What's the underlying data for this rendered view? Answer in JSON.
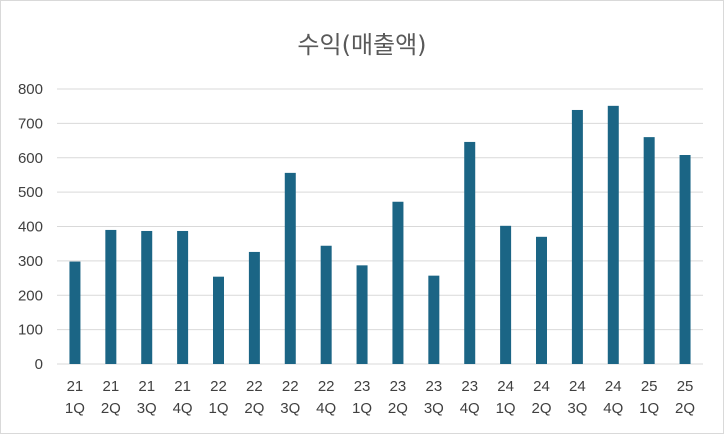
{
  "chart_data": {
    "type": "bar",
    "title": "수익(매출액)",
    "xlabel": "",
    "ylabel": "",
    "ylim": [
      0,
      800
    ],
    "yticks": [
      0,
      100,
      200,
      300,
      400,
      500,
      600,
      700,
      800
    ],
    "grid": true,
    "legend": "none",
    "bar_color": "#1b6585",
    "categories": [
      [
        "21",
        "1Q"
      ],
      [
        "21",
        "2Q"
      ],
      [
        "21",
        "3Q"
      ],
      [
        "21",
        "4Q"
      ],
      [
        "22",
        "1Q"
      ],
      [
        "22",
        "2Q"
      ],
      [
        "22",
        "3Q"
      ],
      [
        "22",
        "4Q"
      ],
      [
        "23",
        "1Q"
      ],
      [
        "23",
        "2Q"
      ],
      [
        "23",
        "3Q"
      ],
      [
        "23",
        "4Q"
      ],
      [
        "24",
        "1Q"
      ],
      [
        "24",
        "2Q"
      ],
      [
        "24",
        "3Q"
      ],
      [
        "24",
        "4Q"
      ],
      [
        "25",
        "1Q"
      ],
      [
        "25",
        "2Q"
      ]
    ],
    "values": [
      298,
      390,
      387,
      387,
      254,
      326,
      556,
      344,
      287,
      472,
      257,
      646,
      402,
      370,
      739,
      751,
      660,
      608
    ]
  }
}
